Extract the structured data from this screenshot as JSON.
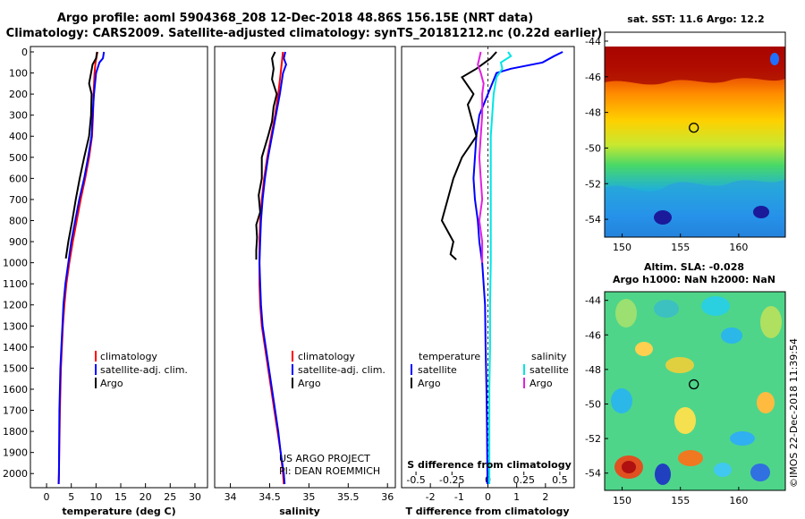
{
  "header": {
    "line1": "Argo profile: aoml 5904368_208 12-Dec-2018 48.86S 156.15E (NRT data)",
    "line2": "Climatology: CARS2009. Satellite-adjusted climatology: synTS_20181212.nc (0.22d earlier)"
  },
  "colors": {
    "climatology": "#ff0000",
    "satellite": "#0000ff",
    "argo": "#000000",
    "sat_salinity": "#00e5e5",
    "argo_salinity": "#e020e0"
  },
  "chart_data": [
    {
      "type": "line",
      "id": "temperature",
      "xlabel": "temperature (deg C)",
      "xlim": [
        -2,
        32
      ],
      "ylim": [
        0,
        2050
      ],
      "xticks": [
        0,
        5,
        10,
        15,
        20,
        25,
        30
      ],
      "depth_ticks": [
        0,
        100,
        200,
        300,
        400,
        500,
        600,
        700,
        800,
        900,
        1000,
        1100,
        1200,
        1300,
        1400,
        1500,
        1600,
        1700,
        1800,
        1900,
        2000
      ],
      "legend": [
        "climatology",
        "satellite-adj. clim.",
        "Argo"
      ],
      "series": [
        {
          "name": "climatology",
          "depth": [
            0,
            50,
            100,
            200,
            300,
            400,
            500,
            600,
            700,
            800,
            900,
            1000,
            1100,
            1200,
            1300,
            1400,
            1500,
            1700,
            2000,
            2050
          ],
          "values": [
            10.3,
            9.9,
            9.7,
            9.5,
            9.4,
            9.2,
            8.6,
            7.8,
            6.9,
            6.1,
            5.3,
            4.6,
            4.0,
            3.6,
            3.3,
            3.1,
            2.9,
            2.7,
            2.5,
            2.45
          ]
        },
        {
          "name": "satellite-adj. clim.",
          "depth": [
            0,
            30,
            50,
            100,
            200,
            300,
            400,
            500,
            600,
            700,
            800,
            900,
            1000,
            1100,
            1200,
            1300,
            1400,
            1500,
            1700,
            2000,
            2050
          ],
          "values": [
            11.6,
            11.4,
            10.7,
            10.0,
            9.6,
            9.3,
            9.1,
            8.4,
            7.6,
            6.6,
            5.8,
            5.0,
            4.4,
            3.8,
            3.4,
            3.2,
            3.0,
            2.8,
            2.6,
            2.5,
            2.45
          ]
        },
        {
          "name": "Argo",
          "depth": [
            0,
            30,
            60,
            100,
            150,
            200,
            300,
            400,
            500,
            600,
            700,
            800,
            900,
            980
          ],
          "values": [
            10.2,
            10.0,
            9.3,
            9.0,
            8.6,
            9.1,
            9.0,
            8.6,
            7.6,
            6.7,
            5.9,
            5.2,
            4.4,
            3.9
          ]
        }
      ]
    },
    {
      "type": "line",
      "id": "salinity",
      "xlabel": "salinity",
      "xlim": [
        33.8,
        36.1
      ],
      "ylim": [
        0,
        2050
      ],
      "xticks": [
        34,
        34.5,
        35,
        35.5,
        36
      ],
      "xticklabels": [
        "34",
        "34.5",
        "35",
        "35.5",
        "36"
      ],
      "legend": [
        "climatology",
        "satellite-adj. clim.",
        "Argo"
      ],
      "notes": [
        "US ARGO PROJECT",
        "PI: DEAN ROEMMICH"
      ],
      "series": [
        {
          "name": "climatology",
          "depth": [
            0,
            100,
            200,
            300,
            400,
            500,
            600,
            700,
            800,
            900,
            1000,
            1100,
            1200,
            1300,
            1400,
            1500,
            1600,
            1700,
            1800,
            1900,
            2000,
            2050
          ],
          "values": [
            34.67,
            34.64,
            34.61,
            34.57,
            34.52,
            34.47,
            34.43,
            34.4,
            34.38,
            34.37,
            34.37,
            34.37,
            34.38,
            34.4,
            34.44,
            34.48,
            34.52,
            34.56,
            34.6,
            34.64,
            34.67,
            34.68
          ]
        },
        {
          "name": "satellite-adj. clim.",
          "depth": [
            0,
            30,
            60,
            100,
            200,
            300,
            400,
            500,
            600,
            700,
            800,
            900,
            1000,
            1100,
            1200,
            1300,
            1400,
            1500,
            1600,
            1700,
            1800,
            1900,
            2000,
            2050
          ],
          "values": [
            34.7,
            34.68,
            34.71,
            34.67,
            34.63,
            34.58,
            34.53,
            34.48,
            34.44,
            34.41,
            34.39,
            34.38,
            34.37,
            34.38,
            34.39,
            34.41,
            34.45,
            34.49,
            34.53,
            34.57,
            34.61,
            34.64,
            34.68,
            34.69
          ]
        },
        {
          "name": "Argo",
          "depth": [
            0,
            30,
            80,
            130,
            200,
            260,
            330,
            400,
            500,
            600,
            680,
            760,
            820,
            880,
            940,
            985
          ],
          "values": [
            34.57,
            34.53,
            34.55,
            34.53,
            34.59,
            34.55,
            34.53,
            34.48,
            34.4,
            34.4,
            34.36,
            34.38,
            34.33,
            34.34,
            34.33,
            34.33
          ]
        }
      ]
    },
    {
      "type": "line",
      "id": "difference",
      "xlabel": "T difference from climatology",
      "xlabel2": "S difference from climatology",
      "xlim": [
        -3,
        3
      ],
      "ylim": [
        0,
        2050
      ],
      "xticks": [
        -2,
        -1,
        0,
        1,
        2
      ],
      "sticks": [
        -0.5,
        -0.25,
        0,
        0.25,
        0.5
      ],
      "sticklabels": [
        "-0.5",
        "-0.25",
        "0",
        "0.25",
        "0.5"
      ],
      "legend": {
        "temperature": [
          "satellite",
          "Argo"
        ],
        "salinity": [
          "satellite",
          "Argo"
        ],
        "temperature_title": "temperature",
        "salinity_title": "salinity"
      },
      "series": [
        {
          "name": "T satellite",
          "depth": [
            0,
            20,
            50,
            80,
            100,
            200,
            300,
            400,
            500,
            600,
            700,
            800,
            900,
            1000,
            1100,
            1200,
            1400,
            1600,
            1800,
            2000,
            2050
          ],
          "values": [
            2.6,
            2.3,
            1.9,
            0.8,
            0.3,
            0.0,
            -0.3,
            -0.4,
            -0.45,
            -0.5,
            -0.45,
            -0.35,
            -0.3,
            -0.2,
            -0.15,
            -0.1,
            -0.08,
            -0.05,
            -0.03,
            -0.02,
            -0.02
          ]
        },
        {
          "name": "T Argo",
          "depth": [
            0,
            30,
            80,
            120,
            200,
            250,
            300,
            400,
            500,
            600,
            700,
            800,
            900,
            960,
            985
          ],
          "values": [
            0.3,
            0.1,
            -0.4,
            -0.9,
            -0.5,
            -0.7,
            -0.6,
            -0.4,
            -0.9,
            -1.2,
            -1.4,
            -1.6,
            -1.2,
            -1.3,
            -1.1
          ]
        },
        {
          "name": "S satellite",
          "depth": [
            0,
            20,
            50,
            80,
            120,
            200,
            300,
            400,
            600,
            800,
            1000,
            1200,
            1400,
            1600,
            1800,
            2000,
            2050
          ],
          "values": [
            0.14,
            0.16,
            0.09,
            0.1,
            0.06,
            0.04,
            0.03,
            0.02,
            0.02,
            0.02,
            0.02,
            0.015,
            0.015,
            0.01,
            0.01,
            0.01,
            0.01
          ]
        },
        {
          "name": "S Argo",
          "depth": [
            0,
            30,
            60,
            100,
            150,
            200,
            300,
            400,
            500,
            600,
            700,
            800,
            900,
            1000
          ],
          "values": [
            -0.05,
            -0.06,
            -0.07,
            -0.05,
            -0.03,
            -0.04,
            -0.04,
            -0.05,
            -0.06,
            -0.05,
            -0.04,
            -0.06,
            -0.04,
            -0.04
          ]
        }
      ]
    },
    {
      "type": "heatmap",
      "id": "sst_map",
      "title": "sat. SST: 11.6 Argo: 12.2",
      "xticks": [
        150,
        155,
        160
      ],
      "yticks": [
        -44,
        -46,
        -48,
        -50,
        -52,
        -54
      ],
      "xlim": [
        148.5,
        164
      ],
      "ylim": [
        -55,
        -43.5
      ],
      "argo_position": {
        "lon": 156.15,
        "lat": -48.86
      }
    },
    {
      "type": "heatmap",
      "id": "sla_map",
      "title1": "Altim. SLA: -0.028",
      "title2": "Argo h1000: NaN h2000: NaN",
      "xticks": [
        150,
        155,
        160
      ],
      "yticks": [
        -44,
        -46,
        -48,
        -50,
        -52,
        -54
      ],
      "xlim": [
        148.5,
        164
      ],
      "ylim": [
        -55,
        -43.5
      ],
      "argo_position": {
        "lon": 156.15,
        "lat": -48.86
      }
    }
  ],
  "credit": "©IMOS 22-Dec-2018 11:39:54"
}
